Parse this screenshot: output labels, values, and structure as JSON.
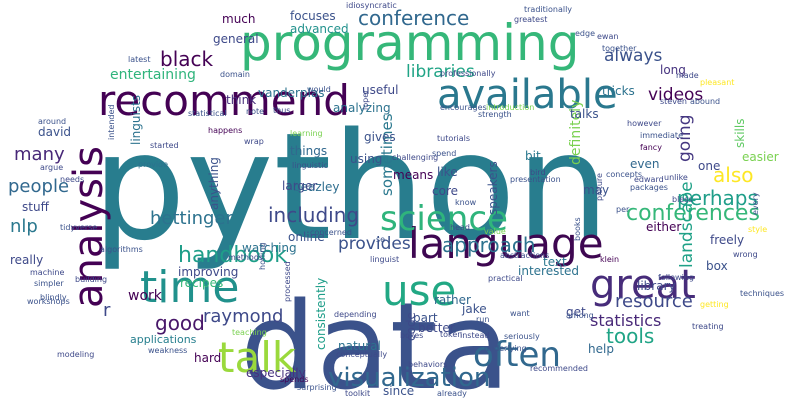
{
  "word_cloud": {
    "words": [
      {
        "text": "python",
        "color": "#287d8e"
      },
      {
        "text": "data",
        "color": "#3b528b"
      },
      {
        "text": "programming",
        "color": "#35b779"
      },
      {
        "text": "language",
        "color": "#3e0751"
      },
      {
        "text": "time",
        "color": "#21918c"
      },
      {
        "text": "recommend",
        "color": "#440154"
      },
      {
        "text": "available",
        "color": "#2a788e"
      },
      {
        "text": "analysis",
        "color": "#440154"
      },
      {
        "text": "talk",
        "color": "#9ad93c"
      },
      {
        "text": "great",
        "color": "#472c7a"
      },
      {
        "text": "use",
        "color": "#22a884"
      },
      {
        "text": "often",
        "color": "#31688e"
      },
      {
        "text": "science",
        "color": "#2fb47c"
      },
      {
        "text": "visualization",
        "color": "#31688e"
      },
      {
        "text": "conference",
        "color": "#31688e"
      },
      {
        "text": "conferences",
        "color": "#35b779"
      },
      {
        "text": "handbook",
        "color": "#1f9e89"
      },
      {
        "text": "approach",
        "color": "#2c728e"
      },
      {
        "text": "also",
        "color": "#fde725"
      },
      {
        "text": "including",
        "color": "#3e4989"
      },
      {
        "text": "hettinger",
        "color": "#2c728e"
      },
      {
        "text": "black",
        "color": "#440154"
      },
      {
        "text": "perhaps",
        "color": "#1f9e89"
      },
      {
        "text": "tools",
        "color": "#20a486"
      },
      {
        "text": "resource",
        "color": "#3e4989"
      },
      {
        "text": "landscape",
        "color": "#1fa187"
      },
      {
        "text": "people",
        "color": "#31688e"
      },
      {
        "text": "good",
        "color": "#481769"
      },
      {
        "text": "raymond",
        "color": "#3e4989"
      },
      {
        "text": "provides",
        "color": "#3b528b"
      },
      {
        "text": "videos",
        "color": "#440154"
      },
      {
        "text": "libraries",
        "color": "#20a486"
      },
      {
        "text": "always",
        "color": "#3b528b"
      },
      {
        "text": "going",
        "color": "#453781"
      },
      {
        "text": "many",
        "color": "#482878"
      },
      {
        "text": "nlp",
        "color": "#2a788e"
      },
      {
        "text": "sometimes",
        "color": "#2a788e"
      },
      {
        "text": "statistics",
        "color": "#482878"
      },
      {
        "text": "entertaining",
        "color": "#2fb47c"
      },
      {
        "text": "work",
        "color": "#440154"
      },
      {
        "text": "definitely",
        "color": "#7ad151"
      },
      {
        "text": "r",
        "color": "#3e4989"
      },
      {
        "text": "applications",
        "color": "#277f8e"
      },
      {
        "text": "speakers",
        "color": "#3b528b"
      },
      {
        "text": "beazley",
        "color": "#2e6d8e"
      },
      {
        "text": "consistently",
        "color": "#1f9e89"
      },
      {
        "text": "recipes",
        "color": "#35b779"
      },
      {
        "text": "natural",
        "color": "#2c728e"
      },
      {
        "text": "especially",
        "color": "#46317e"
      },
      {
        "text": "library",
        "color": "#3e4989"
      },
      {
        "text": "skills",
        "color": "#5ec962"
      },
      {
        "text": "easier",
        "color": "#7ad151"
      },
      {
        "text": "better",
        "color": "#3e4989"
      },
      {
        "text": "focuses",
        "color": "#3b528b"
      },
      {
        "text": "advanced",
        "color": "#21918c"
      },
      {
        "text": "general",
        "color": "#3e4989"
      },
      {
        "text": "much",
        "color": "#440154"
      },
      {
        "text": "think",
        "color": "#472d7b"
      },
      {
        "text": "vanderplas",
        "color": "#2c728e"
      },
      {
        "text": "analyzing",
        "color": "#2c728e"
      },
      {
        "text": "useful",
        "color": "#3e4989"
      },
      {
        "text": "tricks",
        "color": "#2c728e"
      },
      {
        "text": "long",
        "color": "#46337f"
      },
      {
        "text": "larger",
        "color": "#3e4989"
      },
      {
        "text": "things",
        "color": "#31688e"
      },
      {
        "text": "using",
        "color": "#3b528b"
      },
      {
        "text": "means",
        "color": "#440154"
      },
      {
        "text": "core",
        "color": "#3e4989"
      },
      {
        "text": "like",
        "color": "#3b528b"
      },
      {
        "text": "bit",
        "color": "#2a788e"
      },
      {
        "text": "talks",
        "color": "#3b528b"
      },
      {
        "text": "even",
        "color": "#31688e"
      },
      {
        "text": "one",
        "color": "#3e4989"
      },
      {
        "text": "may",
        "color": "#3b528b"
      },
      {
        "text": "either",
        "color": "#440154"
      },
      {
        "text": "freely",
        "color": "#3e4989"
      },
      {
        "text": "box",
        "color": "#3b528b"
      },
      {
        "text": "interested",
        "color": "#2c728e"
      },
      {
        "text": "text",
        "color": "#2a788e"
      },
      {
        "text": "linguists",
        "color": "#2c728e"
      },
      {
        "text": "anything",
        "color": "#3b528b"
      },
      {
        "text": "stuff",
        "color": "#3e4989"
      },
      {
        "text": "david",
        "color": "#3b528b"
      },
      {
        "text": "improving",
        "color": "#3e4989"
      },
      {
        "text": "watching",
        "color": "#2c728e"
      },
      {
        "text": "online",
        "color": "#3b528b"
      },
      {
        "text": "rather",
        "color": "#31688e"
      },
      {
        "text": "part",
        "color": "#3b528b"
      },
      {
        "text": "code",
        "color": "#3e4989"
      },
      {
        "text": "jake",
        "color": "#3b528b"
      },
      {
        "text": "get",
        "color": "#3e4989"
      },
      {
        "text": "help",
        "color": "#31688e"
      },
      {
        "text": "hard",
        "color": "#440154"
      },
      {
        "text": "since",
        "color": "#3b528b"
      },
      {
        "text": "really",
        "color": "#3e4989"
      },
      {
        "text": "gives",
        "color": "#3b528b"
      },
      {
        "text": "provide",
        "color": "#2c728e"
      },
      {
        "text": "happens",
        "color": "#440154"
      },
      {
        "text": "modeling",
        "color": "#3e4989"
      },
      {
        "text": "statistical",
        "color": "#3b528b"
      },
      {
        "text": "processed",
        "color": "#3e4989"
      },
      {
        "text": "linguistic",
        "color": "#3b528b"
      },
      {
        "text": "fancy",
        "color": "#440154"
      },
      {
        "text": "edward",
        "color": "#3e4989"
      },
      {
        "text": "strength",
        "color": "#3b528b"
      },
      {
        "text": "practical",
        "color": "#3e4989"
      },
      {
        "text": "books",
        "color": "#3b528b"
      },
      {
        "text": "klein",
        "color": "#440154"
      },
      {
        "text": "treating",
        "color": "#3e4989"
      },
      {
        "text": "weakness",
        "color": "#3b528b"
      },
      {
        "text": "conceptually",
        "color": "#3e4989"
      },
      {
        "text": "run",
        "color": "#3b528b"
      },
      {
        "text": "instead",
        "color": "#3e4989"
      },
      {
        "text": "seriously",
        "color": "#3b528b"
      },
      {
        "text": "recommended",
        "color": "#3e4989"
      },
      {
        "text": "already",
        "color": "#3b528b"
      },
      {
        "text": "spends",
        "color": "#440154"
      },
      {
        "text": "toolkit",
        "color": "#3e4989"
      },
      {
        "text": "latest",
        "color": "#3b528b"
      },
      {
        "text": "needs",
        "color": "#3e4989"
      },
      {
        "text": "simpler",
        "color": "#3b528b"
      },
      {
        "text": "machine",
        "color": "#3e4989"
      },
      {
        "text": "blindly",
        "color": "#3b528b"
      },
      {
        "text": "building",
        "color": "#3e4989"
      },
      {
        "text": "algorithms",
        "color": "#3b528b"
      },
      {
        "text": "argue",
        "color": "#3e4989"
      },
      {
        "text": "around",
        "color": "#3b528b"
      },
      {
        "text": "teaching",
        "color": "#7ad151"
      },
      {
        "text": "methods",
        "color": "#3e4989"
      },
      {
        "text": "honing",
        "color": "#3b528b"
      },
      {
        "text": "depending",
        "color": "#3e4989"
      },
      {
        "text": "concerned",
        "color": "#3b528b"
      },
      {
        "text": "linguist",
        "color": "#3e4989"
      },
      {
        "text": "se",
        "color": "#3b528b"
      },
      {
        "text": "token",
        "color": "#3e4989"
      },
      {
        "text": "want",
        "color": "#3b528b"
      },
      {
        "text": "boxes",
        "color": "#3e4989"
      },
      {
        "text": "surprising",
        "color": "#3b528b"
      },
      {
        "text": "behaviors",
        "color": "#3e4989"
      },
      {
        "text": "underlying",
        "color": "#3b528b"
      },
      {
        "text": "abstractions",
        "color": "#3e4989"
      },
      {
        "text": "among",
        "color": "#3b528b"
      },
      {
        "text": "following",
        "color": "#3e4989"
      },
      {
        "text": "per",
        "color": "#3b528b"
      },
      {
        "text": "picture",
        "color": "#3e4989"
      },
      {
        "text": "concepts",
        "color": "#3b528b"
      },
      {
        "text": "bless",
        "color": "#3e4989"
      },
      {
        "text": "style",
        "color": "#fde725"
      },
      {
        "text": "every",
        "color": "#3b528b"
      },
      {
        "text": "wrong",
        "color": "#3e4989"
      },
      {
        "text": "getting",
        "color": "#fde725"
      },
      {
        "text": "techniques",
        "color": "#3b528b"
      },
      {
        "text": "idiosyncratic",
        "color": "#3e4989"
      },
      {
        "text": "traditionally",
        "color": "#3b528b"
      },
      {
        "text": "greatest",
        "color": "#3e4989"
      },
      {
        "text": "edge",
        "color": "#3b528b"
      },
      {
        "text": "ewan",
        "color": "#3e4989"
      },
      {
        "text": "together",
        "color": "#3b528b"
      },
      {
        "text": "however",
        "color": "#3e4989"
      },
      {
        "text": "immediate",
        "color": "#3b528b"
      },
      {
        "text": "steven",
        "color": "#3e4989"
      },
      {
        "text": "abound",
        "color": "#3b528b"
      },
      {
        "text": "pleasant",
        "color": "#fde725"
      },
      {
        "text": "made",
        "color": "#3e4989"
      },
      {
        "text": "encourages",
        "color": "#3b528b"
      },
      {
        "text": "introduction",
        "color": "#7ad151"
      },
      {
        "text": "loper",
        "color": "#3e4989"
      },
      {
        "text": "would",
        "color": "#3b528b"
      },
      {
        "text": "thus",
        "color": "#3e4989"
      },
      {
        "text": "note",
        "color": "#3b528b"
      },
      {
        "text": "learning",
        "color": "#7ad151"
      },
      {
        "text": "challenging",
        "color": "#3e4989"
      },
      {
        "text": "spend",
        "color": "#3b528b"
      },
      {
        "text": "bird",
        "color": "#3e4989"
      },
      {
        "text": "know",
        "color": "#3b528b"
      },
      {
        "text": "head",
        "color": "#3e4989"
      },
      {
        "text": "value",
        "color": "#7ad151"
      },
      {
        "text": "packages",
        "color": "#3b528b"
      },
      {
        "text": "unlike",
        "color": "#3e4989"
      },
      {
        "text": "tidyverse",
        "color": "#3b528b"
      },
      {
        "text": "started",
        "color": "#3e4989"
      },
      {
        "text": "intended",
        "color": "#3b528b"
      },
      {
        "text": "wrap",
        "color": "#3e4989"
      },
      {
        "text": "domain",
        "color": "#3b528b"
      },
      {
        "text": "tutorials",
        "color": "#3e4989"
      },
      {
        "text": "presentation",
        "color": "#3b528b"
      },
      {
        "text": "professionally",
        "color": "#3e4989"
      },
      {
        "text": "workshops",
        "color": "#3b528b"
      }
    ]
  }
}
